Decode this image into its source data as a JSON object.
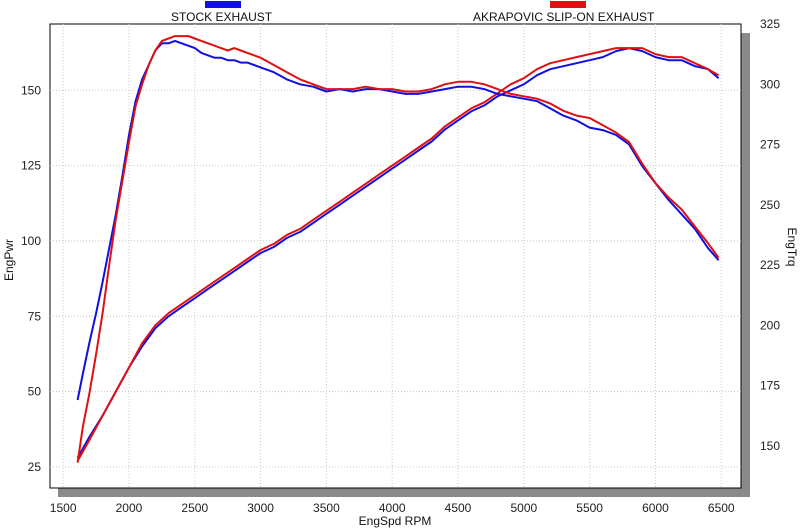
{
  "chart_data": {
    "type": "line",
    "xlabel": "EngSpd  RPM",
    "ylabel_left": "EngPwr",
    "ylabel_right": "EngTrq",
    "xlim": [
      1400,
      6650
    ],
    "ylim_left": [
      18,
      172
    ],
    "ylim_right": [
      132.5,
      325
    ],
    "x_ticks": [
      "1500",
      "2000",
      "2500",
      "3000",
      "3500",
      "4000",
      "4500",
      "5000",
      "5500",
      "6000",
      "6500"
    ],
    "y_left_ticks": [
      "25",
      "50",
      "75",
      "100",
      "125",
      "150"
    ],
    "y_right_ticks": [
      "150",
      "175",
      "200",
      "225",
      "250",
      "275",
      "300",
      "325"
    ],
    "grid": true,
    "legend": [
      {
        "label": "STOCK EXHAUST",
        "color": "#1010e0"
      },
      {
        "label": "AKRAPOVIC SLIP-ON EXHAUST",
        "color": "#e01010"
      }
    ],
    "series": [
      {
        "name": "Stock Power",
        "color": "#1010e0",
        "axis": "left",
        "points": [
          [
            1610,
            28
          ],
          [
            1700,
            35
          ],
          [
            1800,
            42
          ],
          [
            1900,
            50
          ],
          [
            2000,
            58
          ],
          [
            2100,
            65
          ],
          [
            2200,
            71
          ],
          [
            2300,
            75
          ],
          [
            2400,
            78
          ],
          [
            2500,
            81
          ],
          [
            2600,
            84
          ],
          [
            2700,
            87
          ],
          [
            2800,
            90
          ],
          [
            2900,
            93
          ],
          [
            3000,
            96
          ],
          [
            3100,
            98
          ],
          [
            3200,
            101
          ],
          [
            3300,
            103
          ],
          [
            3400,
            106
          ],
          [
            3500,
            109
          ],
          [
            3600,
            112
          ],
          [
            3700,
            115
          ],
          [
            3800,
            118
          ],
          [
            3900,
            121
          ],
          [
            4000,
            124
          ],
          [
            4100,
            127
          ],
          [
            4200,
            130
          ],
          [
            4300,
            133
          ],
          [
            4400,
            137
          ],
          [
            4500,
            140
          ],
          [
            4600,
            143
          ],
          [
            4700,
            145
          ],
          [
            4800,
            148
          ],
          [
            4900,
            150
          ],
          [
            5000,
            152
          ],
          [
            5100,
            155
          ],
          [
            5200,
            157
          ],
          [
            5300,
            158
          ],
          [
            5400,
            159
          ],
          [
            5500,
            160
          ],
          [
            5600,
            161
          ],
          [
            5700,
            163
          ],
          [
            5800,
            164
          ],
          [
            5900,
            163
          ],
          [
            6000,
            161
          ],
          [
            6100,
            160
          ],
          [
            6200,
            160
          ],
          [
            6300,
            158
          ],
          [
            6400,
            157
          ],
          [
            6480,
            154
          ]
        ]
      },
      {
        "name": "Akrapovic Power",
        "color": "#e01010",
        "axis": "left",
        "points": [
          [
            1610,
            27
          ],
          [
            1700,
            34
          ],
          [
            1800,
            42
          ],
          [
            1900,
            50
          ],
          [
            2000,
            58
          ],
          [
            2100,
            66
          ],
          [
            2200,
            72
          ],
          [
            2300,
            76
          ],
          [
            2400,
            79
          ],
          [
            2500,
            82
          ],
          [
            2600,
            85
          ],
          [
            2700,
            88
          ],
          [
            2800,
            91
          ],
          [
            2900,
            94
          ],
          [
            3000,
            97
          ],
          [
            3100,
            99
          ],
          [
            3200,
            102
          ],
          [
            3300,
            104
          ],
          [
            3400,
            107
          ],
          [
            3500,
            110
          ],
          [
            3600,
            113
          ],
          [
            3700,
            116
          ],
          [
            3800,
            119
          ],
          [
            3900,
            122
          ],
          [
            4000,
            125
          ],
          [
            4100,
            128
          ],
          [
            4200,
            131
          ],
          [
            4300,
            134
          ],
          [
            4400,
            138
          ],
          [
            4500,
            141
          ],
          [
            4600,
            144
          ],
          [
            4700,
            146
          ],
          [
            4800,
            149
          ],
          [
            4900,
            152
          ],
          [
            5000,
            154
          ],
          [
            5100,
            157
          ],
          [
            5200,
            159
          ],
          [
            5300,
            160
          ],
          [
            5400,
            161
          ],
          [
            5500,
            162
          ],
          [
            5600,
            163
          ],
          [
            5700,
            164
          ],
          [
            5800,
            164
          ],
          [
            5900,
            164
          ],
          [
            6000,
            162
          ],
          [
            6100,
            161
          ],
          [
            6200,
            161
          ],
          [
            6300,
            159
          ],
          [
            6400,
            157
          ],
          [
            6480,
            155
          ]
        ]
      },
      {
        "name": "Stock Torque",
        "color": "#1010e0",
        "axis": "right",
        "points": [
          [
            1610,
            169
          ],
          [
            1650,
            180
          ],
          [
            1700,
            193
          ],
          [
            1750,
            205
          ],
          [
            1800,
            218
          ],
          [
            1850,
            232
          ],
          [
            1900,
            246
          ],
          [
            1950,
            262
          ],
          [
            2000,
            279
          ],
          [
            2050,
            293
          ],
          [
            2100,
            302
          ],
          [
            2150,
            308
          ],
          [
            2200,
            314
          ],
          [
            2250,
            317
          ],
          [
            2300,
            317
          ],
          [
            2350,
            318
          ],
          [
            2400,
            317
          ],
          [
            2450,
            316
          ],
          [
            2500,
            315
          ],
          [
            2550,
            313
          ],
          [
            2600,
            312
          ],
          [
            2650,
            311
          ],
          [
            2700,
            311
          ],
          [
            2750,
            310
          ],
          [
            2800,
            310
          ],
          [
            2850,
            309
          ],
          [
            2900,
            309
          ],
          [
            2950,
            308
          ],
          [
            3000,
            307
          ],
          [
            3100,
            305
          ],
          [
            3200,
            302
          ],
          [
            3300,
            300
          ],
          [
            3400,
            299
          ],
          [
            3500,
            297
          ],
          [
            3600,
            298
          ],
          [
            3700,
            297
          ],
          [
            3800,
            298
          ],
          [
            3900,
            298
          ],
          [
            4000,
            297
          ],
          [
            4100,
            296
          ],
          [
            4200,
            296
          ],
          [
            4300,
            297
          ],
          [
            4400,
            298
          ],
          [
            4500,
            299
          ],
          [
            4600,
            299
          ],
          [
            4700,
            298
          ],
          [
            4800,
            296
          ],
          [
            4900,
            295
          ],
          [
            5000,
            294
          ],
          [
            5100,
            293
          ],
          [
            5200,
            290
          ],
          [
            5300,
            287
          ],
          [
            5400,
            285
          ],
          [
            5500,
            282
          ],
          [
            5600,
            281
          ],
          [
            5700,
            279
          ],
          [
            5800,
            275
          ],
          [
            5900,
            266
          ],
          [
            6000,
            259
          ],
          [
            6100,
            252
          ],
          [
            6200,
            246
          ],
          [
            6300,
            240
          ],
          [
            6400,
            232
          ],
          [
            6480,
            227
          ]
        ]
      },
      {
        "name": "Akrapovic Torque",
        "color": "#e01010",
        "axis": "right",
        "points": [
          [
            1610,
            143
          ],
          [
            1650,
            158
          ],
          [
            1700,
            172
          ],
          [
            1750,
            188
          ],
          [
            1800,
            205
          ],
          [
            1850,
            225
          ],
          [
            1900,
            244
          ],
          [
            1950,
            260
          ],
          [
            2000,
            276
          ],
          [
            2050,
            291
          ],
          [
            2100,
            300
          ],
          [
            2150,
            308
          ],
          [
            2200,
            314
          ],
          [
            2250,
            318
          ],
          [
            2300,
            319
          ],
          [
            2350,
            320
          ],
          [
            2400,
            320
          ],
          [
            2450,
            320
          ],
          [
            2500,
            319
          ],
          [
            2550,
            318
          ],
          [
            2600,
            317
          ],
          [
            2650,
            316
          ],
          [
            2700,
            315
          ],
          [
            2750,
            314
          ],
          [
            2800,
            315
          ],
          [
            2850,
            314
          ],
          [
            2900,
            313
          ],
          [
            2950,
            312
          ],
          [
            3000,
            311
          ],
          [
            3100,
            308
          ],
          [
            3200,
            305
          ],
          [
            3300,
            302
          ],
          [
            3400,
            300
          ],
          [
            3500,
            298
          ],
          [
            3600,
            298
          ],
          [
            3700,
            298
          ],
          [
            3800,
            299
          ],
          [
            3900,
            298
          ],
          [
            4000,
            298
          ],
          [
            4100,
            297
          ],
          [
            4200,
            297
          ],
          [
            4300,
            298
          ],
          [
            4400,
            300
          ],
          [
            4500,
            301
          ],
          [
            4600,
            301
          ],
          [
            4700,
            300
          ],
          [
            4800,
            298
          ],
          [
            4900,
            296
          ],
          [
            5000,
            295
          ],
          [
            5100,
            294
          ],
          [
            5200,
            292
          ],
          [
            5300,
            289
          ],
          [
            5400,
            287
          ],
          [
            5500,
            286
          ],
          [
            5600,
            283
          ],
          [
            5700,
            280
          ],
          [
            5800,
            276
          ],
          [
            5900,
            267
          ],
          [
            6000,
            259
          ],
          [
            6100,
            253
          ],
          [
            6200,
            248
          ],
          [
            6300,
            241
          ],
          [
            6400,
            234
          ],
          [
            6480,
            228
          ]
        ]
      }
    ]
  }
}
